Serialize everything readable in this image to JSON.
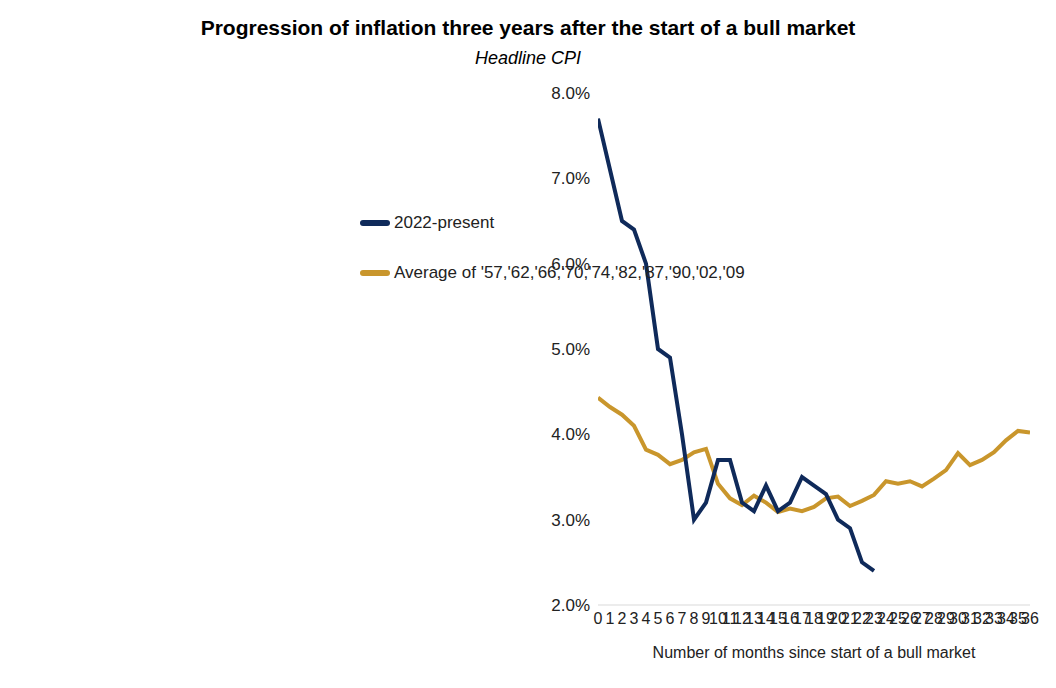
{
  "chart_data": {
    "type": "line",
    "title": "Progression of inflation three years after the start of a bull market",
    "subtitle": "Headline CPI",
    "xlabel": "Number of months since start of a bull market",
    "x": [
      0,
      1,
      2,
      3,
      4,
      5,
      6,
      7,
      8,
      9,
      10,
      11,
      12,
      13,
      14,
      15,
      16,
      17,
      18,
      19,
      20,
      21,
      22,
      23,
      24,
      25,
      26,
      27,
      28,
      29,
      30,
      31,
      32,
      33,
      34,
      35,
      36
    ],
    "xlim": [
      0,
      36
    ],
    "xticks": [
      0,
      1,
      2,
      3,
      4,
      5,
      6,
      7,
      8,
      9,
      10,
      11,
      12,
      13,
      14,
      15,
      16,
      17,
      18,
      19,
      20,
      21,
      22,
      23,
      24,
      25,
      26,
      27,
      28,
      29,
      30,
      31,
      32,
      33,
      34,
      35,
      36
    ],
    "ylim": [
      2,
      8
    ],
    "yticks": [
      {
        "value": 2,
        "label": "2.0%"
      },
      {
        "value": 3,
        "label": "3.0%"
      },
      {
        "value": 4,
        "label": "4.0%"
      },
      {
        "value": 5,
        "label": "5.0%"
      },
      {
        "value": 6,
        "label": "6.0%"
      },
      {
        "value": 7,
        "label": "7.0%"
      },
      {
        "value": 8,
        "label": "8.0%"
      }
    ],
    "grid": false,
    "series": [
      {
        "name": "Average of '57,'62,'66,'70,'74,'82,'87,'90,'02,'09",
        "color": "#c9962c",
        "values": [
          4.43,
          4.32,
          4.23,
          4.1,
          3.82,
          3.76,
          3.65,
          3.7,
          3.79,
          3.83,
          3.42,
          3.25,
          3.17,
          3.28,
          3.2,
          3.09,
          3.13,
          3.1,
          3.15,
          3.25,
          3.27,
          3.16,
          3.22,
          3.29,
          3.45,
          3.42,
          3.45,
          3.39,
          3.48,
          3.58,
          3.78,
          3.64,
          3.7,
          3.79,
          3.93,
          4.04,
          4.02
        ]
      },
      {
        "name": "2022-present",
        "color": "#0f2a5a",
        "values": [
          7.7,
          7.1,
          6.5,
          6.4,
          6.0,
          5.0,
          4.9,
          4.0,
          3.0,
          3.2,
          3.7,
          3.7,
          3.2,
          3.1,
          3.4,
          3.1,
          3.2,
          3.5,
          3.4,
          3.3,
          3.0,
          2.9,
          2.5,
          2.4,
          null,
          null,
          null,
          null,
          null,
          null,
          null,
          null,
          null,
          null,
          null,
          null,
          null
        ]
      }
    ]
  }
}
